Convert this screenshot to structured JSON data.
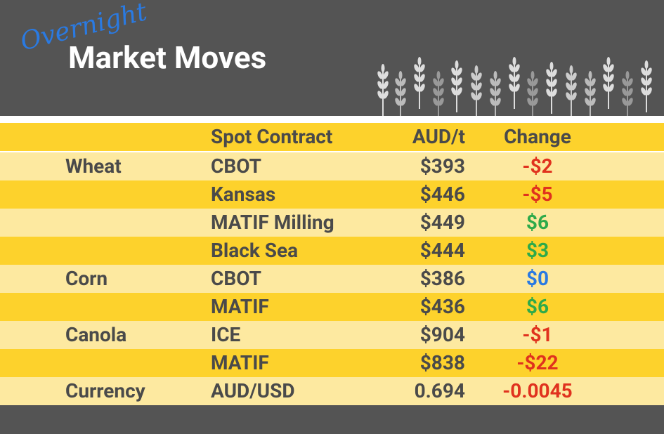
{
  "header": {
    "overline": "Overnight",
    "title": "Market Moves"
  },
  "table": {
    "columns": [
      "Spot Contract",
      "AUD/t",
      "Change"
    ],
    "rows": [
      {
        "commodity": "Wheat",
        "contract": "CBOT",
        "price": "$393",
        "change": "-$2",
        "color": "#e0321e"
      },
      {
        "contract": "Kansas",
        "price": "$446",
        "change": "-$5",
        "color": "#e0321e"
      },
      {
        "contract": "MATIF Milling",
        "price": "$449",
        "change": "$6",
        "color": "#2eaa4a"
      },
      {
        "contract": "Black Sea",
        "price": "$444",
        "change": "$3",
        "color": "#2eaa4a"
      },
      {
        "commodity": "Corn",
        "contract": "CBOT",
        "price": "$386",
        "change": "$0",
        "color": "#2a7ae2"
      },
      {
        "contract": "MATIF",
        "price": "$436",
        "change": "$6",
        "color": "#2eaa4a"
      },
      {
        "commodity": "Canola",
        "contract": "ICE",
        "price": "$904",
        "change": "-$1",
        "color": "#e0321e"
      },
      {
        "contract": "MATIF",
        "price": "$838",
        "change": "-$22",
        "color": "#e0321e"
      },
      {
        "commodity": "Currency",
        "contract": "AUD/USD",
        "price": "0.694",
        "change": "-0.0045",
        "color": "#e0321e"
      }
    ]
  }
}
